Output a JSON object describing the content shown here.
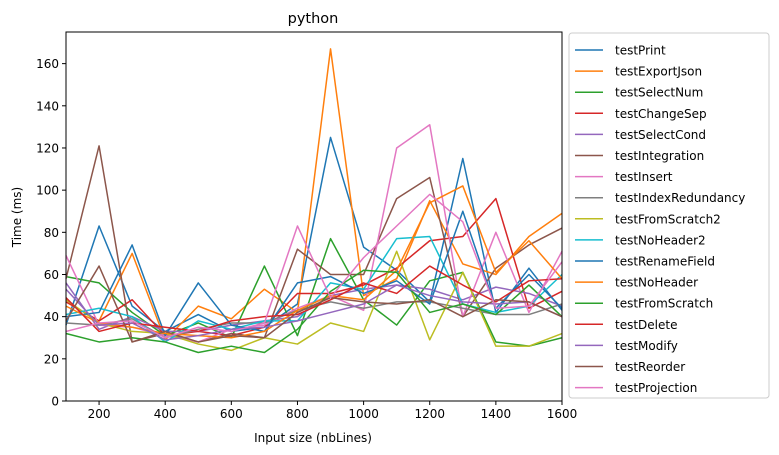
{
  "chart_data": {
    "type": "line",
    "title": "python",
    "xlabel": "Input size (nbLines)",
    "ylabel": "Time (ms)",
    "xlim": [
      100,
      1600
    ],
    "ylim": [
      0,
      175
    ],
    "xticks": [
      200,
      400,
      600,
      800,
      1000,
      1200,
      1400,
      1600
    ],
    "yticks": [
      0,
      20,
      40,
      60,
      80,
      100,
      120,
      140,
      160
    ],
    "grid": false,
    "legend_position": "outside-right",
    "x": [
      100,
      200,
      300,
      400,
      500,
      600,
      700,
      800,
      900,
      1000,
      1100,
      1200,
      1300,
      1400,
      1500,
      1600
    ],
    "series": [
      {
        "name": "testPrint",
        "color": "#1f77b4",
        "values": [
          36,
          83,
          45,
          33,
          41,
          33,
          35,
          46,
          125,
          73,
          62,
          47,
          115,
          42,
          63,
          43
        ]
      },
      {
        "name": "testExportJson",
        "color": "#ff7f0e",
        "values": [
          47,
          38,
          70,
          29,
          45,
          39,
          53,
          42,
          167,
          50,
          58,
          95,
          65,
          60,
          78,
          89
        ]
      },
      {
        "name": "testSelectNum",
        "color": "#2ca02c",
        "values": [
          59,
          56,
          42,
          31,
          37,
          30,
          64,
          31,
          77,
          48,
          36,
          57,
          61,
          28,
          26,
          30
        ]
      },
      {
        "name": "testChangeSep",
        "color": "#d62728",
        "values": [
          47,
          38,
          48,
          31,
          33,
          31,
          35,
          51,
          51,
          55,
          63,
          76,
          78,
          96,
          44,
          52
        ]
      },
      {
        "name": "testSelectCond",
        "color": "#9467bd",
        "values": [
          56,
          34,
          40,
          33,
          33,
          36,
          38,
          40,
          50,
          53,
          55,
          53,
          48,
          54,
          51,
          45
        ]
      },
      {
        "name": "testIntegration",
        "color": "#8c564b",
        "values": [
          58,
          121,
          28,
          32,
          28,
          32,
          30,
          72,
          60,
          60,
          96,
          106,
          40,
          63,
          74,
          82
        ]
      },
      {
        "name": "testInsert",
        "color": "#e377c2",
        "values": [
          69,
          36,
          35,
          31,
          28,
          34,
          36,
          44,
          50,
          43,
          120,
          131,
          40,
          80,
          42,
          71
        ]
      },
      {
        "name": "testIndexRedundancy",
        "color": "#7f7f7f",
        "values": [
          37,
          36,
          39,
          30,
          34,
          37,
          37,
          43,
          47,
          44,
          47,
          47,
          44,
          41,
          41,
          46
        ]
      },
      {
        "name": "testFromScratch2",
        "color": "#bcbd22",
        "values": [
          48,
          37,
          33,
          32,
          27,
          24,
          30,
          27,
          37,
          33,
          71,
          29,
          61,
          26,
          26,
          32
        ]
      },
      {
        "name": "testNoHeader2",
        "color": "#17becf",
        "values": [
          41,
          44,
          40,
          28,
          38,
          34,
          38,
          38,
          56,
          53,
          77,
          78,
          46,
          42,
          45,
          60
        ]
      },
      {
        "name": "testRenameField",
        "color": "#1f77b4",
        "values": [
          40,
          42,
          74,
          31,
          56,
          36,
          33,
          56,
          59,
          51,
          57,
          46,
          90,
          44,
          60,
          44
        ]
      },
      {
        "name": "testNoHeader",
        "color": "#ff7f0e",
        "values": [
          45,
          37,
          35,
          32,
          31,
          30,
          33,
          43,
          50,
          48,
          62,
          94,
          102,
          61,
          76,
          58
        ]
      },
      {
        "name": "testFromScratch",
        "color": "#2ca02c",
        "values": [
          32,
          28,
          30,
          28,
          23,
          26,
          23,
          34,
          52,
          62,
          61,
          42,
          46,
          41,
          55,
          40
        ]
      },
      {
        "name": "testDelete",
        "color": "#d62728",
        "values": [
          49,
          33,
          37,
          35,
          33,
          38,
          40,
          41,
          48,
          56,
          51,
          64,
          55,
          47,
          57,
          58
        ]
      },
      {
        "name": "testModify",
        "color": "#9467bd",
        "values": [
          53,
          36,
          37,
          29,
          31,
          34,
          35,
          38,
          42,
          46,
          55,
          50,
          47,
          46,
          47,
          40
        ]
      },
      {
        "name": "testReorder",
        "color": "#8c564b",
        "values": [
          38,
          64,
          28,
          33,
          28,
          31,
          30,
          42,
          49,
          47,
          46,
          48,
          40,
          48,
          47,
          40
        ]
      },
      {
        "name": "testProjection",
        "color": "#e377c2",
        "values": [
          33,
          37,
          38,
          30,
          35,
          33,
          37,
          83,
          49,
          68,
          83,
          98,
          85,
          44,
          45,
          66
        ]
      }
    ]
  }
}
